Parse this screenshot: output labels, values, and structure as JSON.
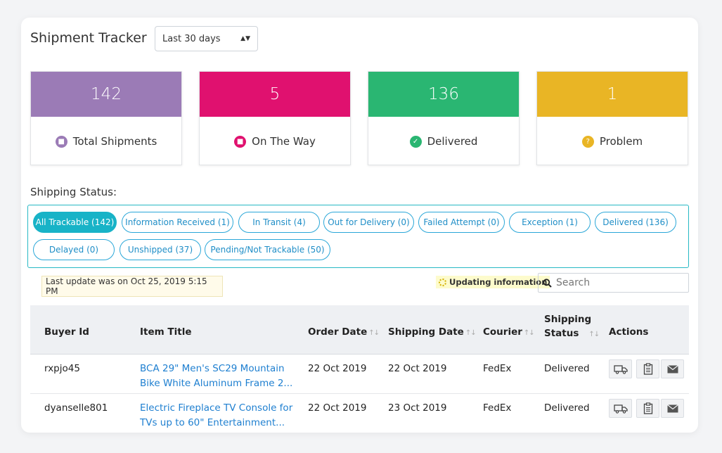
{
  "header": {
    "title": "Shipment Tracker",
    "period": "Last 30 days"
  },
  "stats": [
    {
      "value": "142",
      "label": "Total Shipments",
      "color": "#9b7bb6",
      "icon_color": "#9b7bb6",
      "icon": "truck-icon"
    },
    {
      "value": "5",
      "label": "On The Way",
      "color": "#e0116f",
      "icon_color": "#e0116f",
      "icon": "truck-icon"
    },
    {
      "value": "136",
      "label": "Delivered",
      "color": "#2ab672",
      "icon_color": "#2ab672",
      "icon": "check-icon"
    },
    {
      "value": "1",
      "label": "Problem",
      "color": "#e9b525",
      "icon_color": "#e9b525",
      "icon": "question-icon"
    }
  ],
  "shipping_status": {
    "label": "Shipping Status:",
    "filters": [
      "All Trackable (142)",
      "Information Received (1)",
      "In Transit (4)",
      "Out for Delivery (0)",
      "Failed Attempt (0)",
      "Exception (1)",
      "Delivered (136)",
      "Delayed (0)",
      "Unshipped (37)",
      "Pending/Not Trackable (50)"
    ]
  },
  "last_update": "Last update was on Oct 25, 2019 5:15 PM",
  "updating": "Updating information",
  "search": {
    "placeholder": "Search"
  },
  "table": {
    "headers": {
      "buyer": "Buyer Id",
      "item": "Item Title",
      "order_date": "Order Date",
      "shipping_date": "Shipping Date",
      "courier": "Courier",
      "status_1": "Shipping",
      "status_2": "Status",
      "actions": "Actions"
    },
    "rows": [
      {
        "buyer": "rxpjo45",
        "item_1": "BCA 29\" Men's SC29 Mountain",
        "item_2": "Bike White Aluminum Frame 2...",
        "order_date": "22 Oct 2019",
        "shipping_date": "22 Oct 2019",
        "courier": "FedEx",
        "status": "Delivered"
      },
      {
        "buyer": "dyanselle801",
        "item_1": "Electric Fireplace TV Console for",
        "item_2": "TVs up to 60\" Entertainment...",
        "order_date": "22 Oct 2019",
        "shipping_date": "23 Oct 2019",
        "courier": "FedEx",
        "status": "Delivered"
      }
    ]
  }
}
